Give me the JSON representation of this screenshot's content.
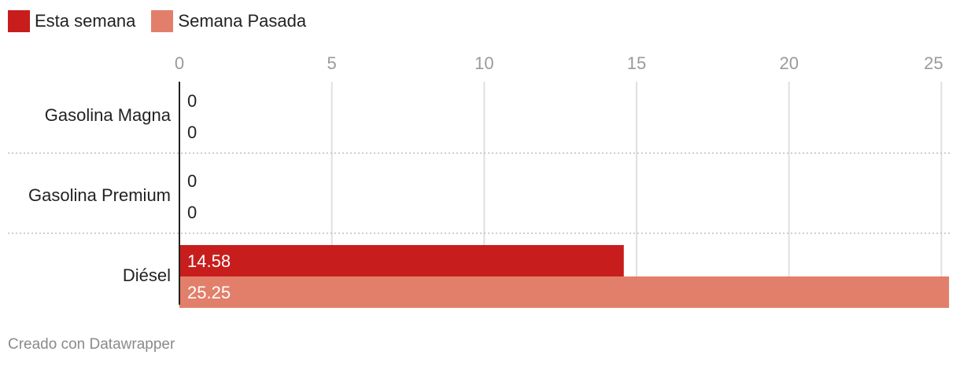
{
  "chart_data": {
    "type": "bar",
    "orientation": "horizontal",
    "categories": [
      "Gasolina Magna",
      "Gasolina Premium",
      "Diésel"
    ],
    "series": [
      {
        "name": "Esta semana",
        "color": "#c71e1d",
        "values": [
          0,
          0,
          14.58
        ]
      },
      {
        "name": "Semana Pasada",
        "color": "#e27f6a",
        "values": [
          0,
          0,
          25.25
        ]
      }
    ],
    "value_labels": [
      [
        "0",
        "0",
        "14.58"
      ],
      [
        "0",
        "0",
        "25.25"
      ]
    ],
    "x_ticks": [
      "0",
      "5",
      "10",
      "15",
      "20",
      "25"
    ],
    "x_tick_values": [
      0,
      5,
      10,
      15,
      20,
      25
    ],
    "xlim": [
      0,
      25.3
    ],
    "grid": true,
    "legend_position": "top-left"
  },
  "footer": "Creado con Datawrapper"
}
